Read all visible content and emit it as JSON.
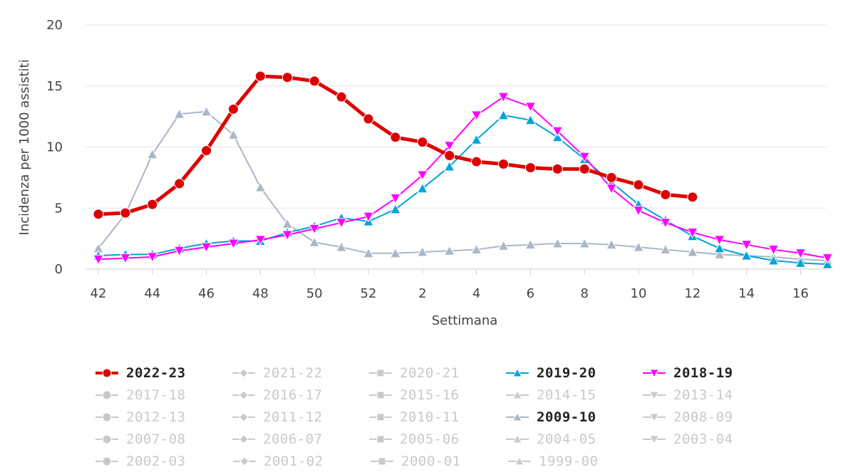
{
  "chart_data": {
    "type": "line",
    "title": "",
    "xlabel": "Settimana",
    "ylabel": "Incidenza per 1000 assistiti",
    "ylim": [
      0,
      20
    ],
    "yticks": [
      0,
      5,
      10,
      15,
      20
    ],
    "categories": [
      "42",
      "43",
      "44",
      "45",
      "46",
      "47",
      "48",
      "49",
      "50",
      "51",
      "52",
      "1",
      "2",
      "3",
      "4",
      "5",
      "6",
      "7",
      "8",
      "9",
      "10",
      "11",
      "12",
      "13",
      "14",
      "15",
      "16",
      "17"
    ],
    "xtick_labels": [
      "42",
      "44",
      "46",
      "48",
      "50",
      "52",
      "2",
      "4",
      "6",
      "8",
      "10",
      "12",
      "14",
      "16"
    ],
    "series": [
      {
        "name": "2009-10",
        "color": "#a9b7c6",
        "marker": "triangle",
        "values": [
          1.7,
          4.5,
          9.4,
          12.7,
          12.9,
          11.0,
          6.7,
          3.7,
          2.2,
          1.8,
          1.3,
          1.3,
          1.4,
          1.5,
          1.6,
          1.9,
          2.0,
          2.1,
          2.1,
          2.0,
          1.8,
          1.6,
          1.4,
          1.2,
          1.1,
          1.0,
          0.8,
          0.7
        ]
      },
      {
        "name": "2019-20",
        "color": "#00a3d9",
        "marker": "triangle",
        "values": [
          1.1,
          1.2,
          1.2,
          1.7,
          2.1,
          2.3,
          2.3,
          3.0,
          3.5,
          4.2,
          3.9,
          4.9,
          6.6,
          8.4,
          10.6,
          12.6,
          12.2,
          10.8,
          9.0,
          7.1,
          5.3,
          4.0,
          2.7,
          1.7,
          1.1,
          0.7,
          0.5,
          0.4
        ]
      },
      {
        "name": "2018-19",
        "color": "#ff00ff",
        "marker": "triangle-down",
        "values": [
          0.8,
          0.9,
          1.0,
          1.5,
          1.8,
          2.1,
          2.4,
          2.8,
          3.3,
          3.8,
          4.3,
          5.8,
          7.7,
          10.1,
          12.6,
          14.1,
          13.3,
          11.3,
          9.2,
          6.6,
          4.8,
          3.8,
          3.0,
          2.4,
          2.0,
          1.6,
          1.3,
          0.9
        ]
      },
      {
        "name": "2022-23",
        "color": "#dd0000",
        "marker": "circle",
        "values": [
          4.5,
          4.6,
          5.3,
          7.0,
          9.7,
          13.1,
          15.8,
          15.7,
          15.4,
          14.1,
          12.3,
          10.8,
          10.4,
          9.3,
          8.8,
          8.6,
          8.3,
          8.2,
          8.2,
          7.5,
          6.9,
          6.1,
          5.9,
          null,
          null,
          null,
          null,
          null
        ]
      }
    ],
    "legend": [
      {
        "label": "2022-23",
        "marker": "circle",
        "color": "#dd0000",
        "active": true
      },
      {
        "label": "2021-22",
        "marker": "diamond",
        "color": "#c9c9c9",
        "active": false
      },
      {
        "label": "2020-21",
        "marker": "square",
        "color": "#c9c9c9",
        "active": false
      },
      {
        "label": "2019-20",
        "marker": "triangle",
        "color": "#00a3d9",
        "active": true
      },
      {
        "label": "2018-19",
        "marker": "triangle-down",
        "color": "#ff00ff",
        "active": true
      },
      {
        "label": "2017-18",
        "marker": "circle",
        "color": "#c9c9c9",
        "active": false
      },
      {
        "label": "2016-17",
        "marker": "diamond",
        "color": "#c9c9c9",
        "active": false
      },
      {
        "label": "2015-16",
        "marker": "square",
        "color": "#c9c9c9",
        "active": false
      },
      {
        "label": "2014-15",
        "marker": "triangle",
        "color": "#c9c9c9",
        "active": false
      },
      {
        "label": "2013-14",
        "marker": "triangle-down",
        "color": "#c9c9c9",
        "active": false
      },
      {
        "label": "2012-13",
        "marker": "circle",
        "color": "#c9c9c9",
        "active": false
      },
      {
        "label": "2011-12",
        "marker": "diamond",
        "color": "#c9c9c9",
        "active": false
      },
      {
        "label": "2010-11",
        "marker": "square",
        "color": "#c9c9c9",
        "active": false
      },
      {
        "label": "2009-10",
        "marker": "triangle",
        "color": "#a9b7c6",
        "active": true
      },
      {
        "label": "2008-09",
        "marker": "triangle-down",
        "color": "#c9c9c9",
        "active": false
      },
      {
        "label": "2007-08",
        "marker": "circle",
        "color": "#c9c9c9",
        "active": false
      },
      {
        "label": "2006-07",
        "marker": "diamond",
        "color": "#c9c9c9",
        "active": false
      },
      {
        "label": "2005-06",
        "marker": "square",
        "color": "#c9c9c9",
        "active": false
      },
      {
        "label": "2004-05",
        "marker": "triangle",
        "color": "#c9c9c9",
        "active": false
      },
      {
        "label": "2003-04",
        "marker": "triangle-down",
        "color": "#c9c9c9",
        "active": false
      },
      {
        "label": "2002-03",
        "marker": "circle",
        "color": "#c9c9c9",
        "active": false
      },
      {
        "label": "2001-02",
        "marker": "diamond",
        "color": "#c9c9c9",
        "active": false
      },
      {
        "label": "2000-01",
        "marker": "square",
        "color": "#c9c9c9",
        "active": false
      },
      {
        "label": "1999-00",
        "marker": "triangle",
        "color": "#c9c9c9",
        "active": false
      }
    ]
  }
}
